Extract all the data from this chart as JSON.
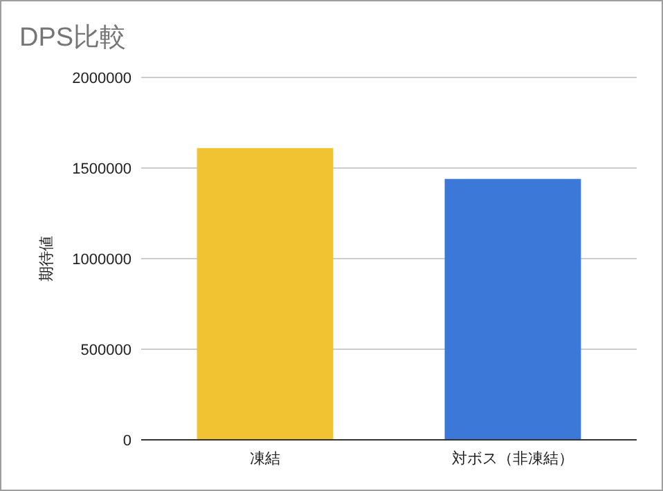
{
  "chart_data": {
    "type": "bar",
    "title": "DPS比較",
    "ylabel": "期待値",
    "categories": [
      "凍結",
      "対ボス（非凍結）"
    ],
    "values": [
      1610000,
      1440000
    ],
    "colors": [
      "#f1c232",
      "#3c78d8"
    ],
    "ylim": [
      0,
      2000000
    ],
    "yticks": [
      0,
      500000,
      1000000,
      1500000,
      2000000
    ],
    "grid": "y"
  }
}
